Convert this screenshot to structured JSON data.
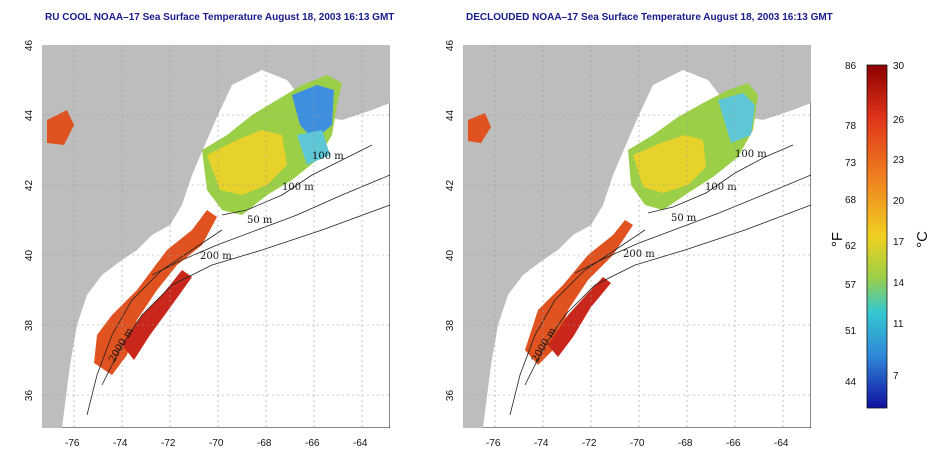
{
  "titles": {
    "left": "RU COOL NOAA–17 Sea Surface Temperature August 18, 2003 16:13 GMT",
    "right": "DECLOUDED NOAA–17 Sea Surface Temperature August 18, 2003 16:13 GMT"
  },
  "axes": {
    "lat_ticks": [
      "46",
      "44",
      "42",
      "40",
      "38",
      "36"
    ],
    "lon_ticks": [
      "-76",
      "-74",
      "-72",
      "-70",
      "-68",
      "-66",
      "-64"
    ]
  },
  "contours": {
    "label_100": "100 m",
    "label_50": "50 m",
    "label_200": "200 m",
    "label_2000": "2000 m"
  },
  "colors": {
    "land": "#bdbdbd",
    "ocean": "#ffffff",
    "grid": "#999999",
    "warm": "#d83a1f",
    "mid": "#f0d020",
    "cool": "#2f86d8"
  },
  "colorbar": {
    "f_ticks": [
      "86",
      "78",
      "73",
      "68",
      "62",
      "57",
      "51",
      "44"
    ],
    "c_ticks": [
      "30",
      "26",
      "23",
      "20",
      "17",
      "14",
      "11",
      "7"
    ],
    "unit_f": "°F",
    "unit_c": "°C"
  }
}
